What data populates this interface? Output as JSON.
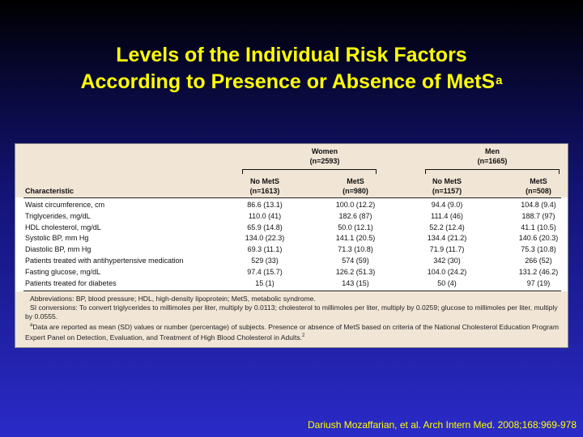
{
  "slide": {
    "title_line1": "Levels of the Individual Risk Factors",
    "title_line2": "According to Presence or Absence of MetS",
    "title_superscript": "a",
    "citation": "Dariush Mozaffarian, et al. Arch Intern Med. 2008;168:969-978",
    "title_color": "#ffff00",
    "background_colors": [
      "#000000",
      "#2a2ac8"
    ]
  },
  "table": {
    "header": {
      "characteristic": "Characteristic",
      "women": "Women",
      "women_n": "(n=2593)",
      "men": "Men",
      "men_n": "(n=1665)",
      "no_mets": "No MetS",
      "mets": "MetS",
      "women_no_mets_n": "(n=1613)",
      "women_mets_n": "(n=980)",
      "men_no_mets_n": "(n=1157)",
      "men_mets_n": "(n=508)"
    },
    "rows": [
      {
        "label": "Waist circumference, cm",
        "w_no": "86.6 (13.1)",
        "w_yes": "100.0 (12.2)",
        "m_no": "94.4 (9.0)",
        "m_yes": "104.8 (9.4)"
      },
      {
        "label": "Triglycerides, mg/dL",
        "w_no": "110.0 (41)",
        "w_yes": "182.6 (87)",
        "m_no": "111.4 (46)",
        "m_yes": "188.7 (97)"
      },
      {
        "label": "HDL cholesterol, mg/dL",
        "w_no": "65.9 (14.8)",
        "w_yes": "50.0 (12.1)",
        "m_no": "52.2 (12.4)",
        "m_yes": "41.1 (10.5)"
      },
      {
        "label": "Systolic BP, mm Hg",
        "w_no": "134.0 (22.3)",
        "w_yes": "141.1 (20.5)",
        "m_no": "134.4 (21.2)",
        "m_yes": "140.6 (20.3)"
      },
      {
        "label": "Diastolic BP, mm Hg",
        "w_no": "69.3 (11.1)",
        "w_yes": "71.3 (10.8)",
        "m_no": "71.9 (11.7)",
        "m_yes": "75.3 (10.8)"
      },
      {
        "label": "Patients treated with antihypertensive medication",
        "w_no": "529 (33)",
        "w_yes": "574 (59)",
        "m_no": "342 (30)",
        "m_yes": "266 (52)"
      },
      {
        "label": "Fasting glucose, mg/dL",
        "w_no": "97.4 (15.7)",
        "w_yes": "126.2 (51.3)",
        "m_no": "104.0 (24.2)",
        "m_yes": "131.2 (46.2)"
      },
      {
        "label": "Patients treated for diabetes",
        "w_no": "15 (1)",
        "w_yes": "143 (15)",
        "m_no": "50 (4)",
        "m_yes": "97 (19)"
      }
    ],
    "footnotes": {
      "abbreviations": "Abbreviations: BP, blood pressure; HDL, high-density lipoprotein; MetS, metabolic syndrome.",
      "si_conversions": "SI conversions: To convert triglycerides to millimoles per liter, multiply by 0.0113; cholesterol to millimoles per liter, multiply by 0.0259; glucose to millimoles per liter, multiply by 0.0555.",
      "note_a_marker": "a",
      "note_a": "Data are reported as mean (SD) values or number (percentage) of subjects. Presence or absence of MetS based on criteria of the National Cholesterol Education Program Expert Panel on Detection, Evaluation, and Treatment of High Blood Cholesterol in Adults.",
      "note_a_ref": "2"
    },
    "header_bg": "#f1e6d6"
  }
}
